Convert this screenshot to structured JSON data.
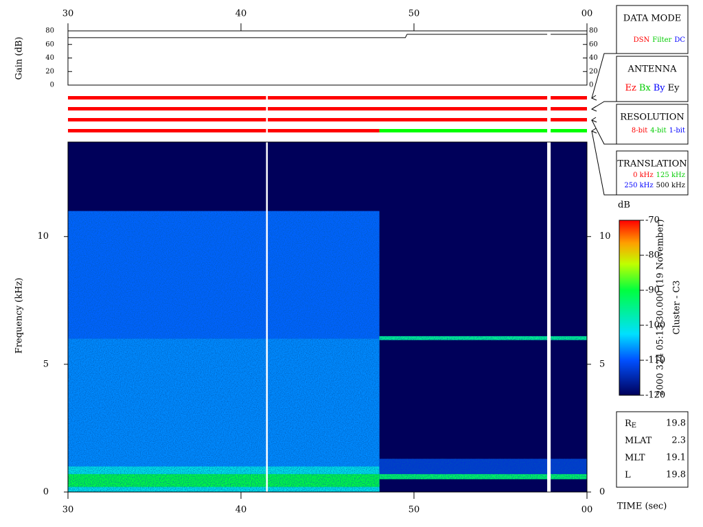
{
  "chart_data": [
    {
      "type": "line",
      "y_label": "Gain (dB)",
      "xlim": [
        30,
        60
      ],
      "xticks": [
        30,
        40,
        50,
        {
          "value": 60,
          "label": "00"
        }
      ],
      "ylim": [
        0,
        80
      ],
      "yticks": [
        0,
        20,
        40,
        60,
        80
      ],
      "color": "#000000",
      "x": [
        30,
        41.4,
        41.6,
        49.5,
        49.6,
        57.7,
        57.8,
        57.9,
        60
      ],
      "values": [
        70,
        70,
        70,
        70,
        75,
        75,
        null,
        75,
        75
      ]
    },
    {
      "type": "timeline",
      "xlim": [
        30,
        60
      ],
      "rows": [
        {
          "segments": [
            {
              "x": [
                30,
                41.45
              ],
              "color": "#ff0000"
            },
            {
              "x": [
                41.55,
                57.7
              ],
              "color": "#ff0000"
            },
            {
              "x": [
                57.9,
                60
              ],
              "color": "#ff0000"
            }
          ]
        },
        {
          "segments": [
            {
              "x": [
                30,
                41.45
              ],
              "color": "#ff0000"
            },
            {
              "x": [
                41.55,
                57.7
              ],
              "color": "#ff0000"
            },
            {
              "x": [
                57.9,
                60
              ],
              "color": "#ff0000"
            }
          ]
        },
        {
          "segments": [
            {
              "x": [
                30,
                41.45
              ],
              "color": "#ff0000"
            },
            {
              "x": [
                41.55,
                57.7
              ],
              "color": "#ff0000"
            },
            {
              "x": [
                57.9,
                60
              ],
              "color": "#ff0000"
            }
          ]
        },
        {
          "segments": [
            {
              "x": [
                30,
                41.45
              ],
              "color": "#ff0000"
            },
            {
              "x": [
                41.55,
                48
              ],
              "color": "#ff0000"
            },
            {
              "x": [
                48,
                57.7
              ],
              "color": "#00ff00"
            },
            {
              "x": [
                57.9,
                60
              ],
              "color": "#00ff00"
            }
          ]
        }
      ]
    },
    {
      "type": "spectrogram",
      "y_label": "Frequency (kHz)",
      "x_label": "TIME (sec)",
      "xlim": [
        30,
        60
      ],
      "xticks": [
        30,
        40,
        50,
        {
          "value": 60,
          "label": "00"
        }
      ],
      "ylim": [
        0,
        13.7
      ],
      "yticks": [
        0,
        5,
        10
      ],
      "regions": [
        {
          "x": [
            30,
            60
          ],
          "y": [
            0,
            13.7
          ],
          "value": -120
        },
        {
          "x": [
            30,
            48
          ],
          "y": [
            0,
            11
          ],
          "value": -109
        },
        {
          "x": [
            30,
            48
          ],
          "y": [
            0,
            6
          ],
          "value": -107
        },
        {
          "x": [
            30,
            48
          ],
          "y": [
            0,
            1
          ],
          "value": -101
        },
        {
          "x": [
            30,
            48
          ],
          "y": [
            0.2,
            0.7
          ],
          "value": -90
        },
        {
          "x": [
            48,
            60
          ],
          "y": [
            0.7,
            1.3
          ],
          "value": -113
        },
        {
          "x": [
            48,
            60
          ],
          "y": [
            0.5,
            0.7
          ],
          "value": -92
        },
        {
          "x": [
            48,
            60
          ],
          "y": [
            5.95,
            6.1
          ],
          "value": -95
        }
      ],
      "gaps": [
        [
          41.45,
          41.55
        ],
        [
          57.7,
          57.9
        ]
      ],
      "colorbar": {
        "label": "dB",
        "lim": [
          -120,
          -70
        ],
        "ticks": [
          -70,
          -80,
          -90,
          -100,
          -110,
          -120
        ]
      },
      "annotations": [
        "2000 324 05:13:30.000 (19 November)",
        "Cluster - C3"
      ]
    }
  ],
  "panels": [
    {
      "title": "DATA MODE",
      "lines": [
        [
          {
            "text": "DSN",
            "color": "#ff0000"
          },
          {
            "text": "Filter",
            "color": "#00cc00"
          },
          {
            "text": "DC",
            "color": "#0000ff"
          }
        ]
      ]
    },
    {
      "title": "ANTENNA",
      "lines": [
        [
          {
            "text": "Ez",
            "color": "#ff0000"
          },
          {
            "text": "Bx",
            "color": "#00cc00"
          },
          {
            "text": "By",
            "color": "#0000ff"
          },
          {
            "text": "Ey",
            "color": "#000000"
          }
        ]
      ]
    },
    {
      "title": "RESOLUTION",
      "lines": [
        [
          {
            "text": "8-bit",
            "color": "#ff0000"
          },
          {
            "text": "4-bit",
            "color": "#00cc00"
          },
          {
            "text": "1-bit",
            "color": "#0000ff"
          }
        ]
      ]
    },
    {
      "title": "TRANSLATION",
      "lines": [
        [
          {
            "text": "0 kHz",
            "color": "#ff0000"
          },
          {
            "text": "125 kHz",
            "color": "#00cc00"
          }
        ],
        [
          {
            "text": "250 kHz",
            "color": "#0000ff"
          },
          {
            "text": "500 kHz",
            "color": "#000000"
          }
        ]
      ]
    }
  ],
  "position": {
    "rows": [
      {
        "label": "R",
        "sub": "E",
        "value": 19.8
      },
      {
        "label": "MLAT",
        "value": 2.3
      },
      {
        "label": "MLT",
        "value": 19.1
      },
      {
        "label": "L",
        "value": 19.8
      }
    ]
  }
}
